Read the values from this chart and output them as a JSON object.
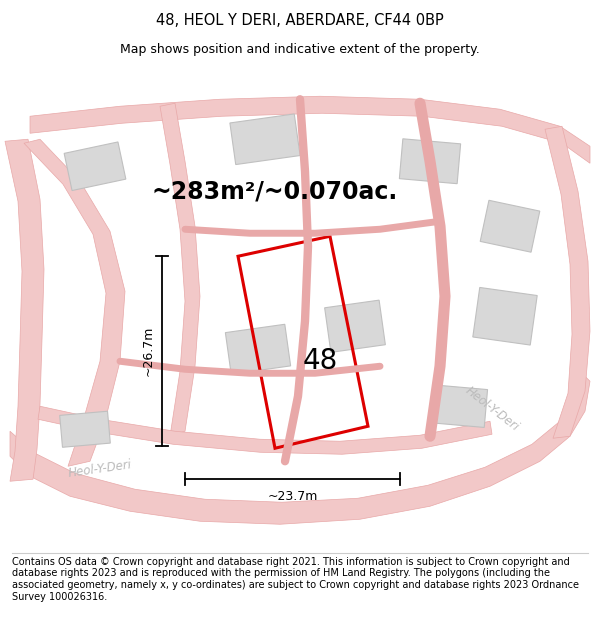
{
  "title": "48, HEOL Y DERI, ABERDARE, CF44 0BP",
  "subtitle": "Map shows position and indicative extent of the property.",
  "area_text": "~283m²/~0.070ac.",
  "number_label": "48",
  "dim_width": "~23.7m",
  "dim_height": "~26.7m",
  "footer": "Contains OS data © Crown copyright and database right 2021. This information is subject to Crown copyright and database rights 2023 and is reproduced with the permission of HM Land Registry. The polygons (including the associated geometry, namely x, y co-ordinates) are subject to Crown copyright and database rights 2023 Ordnance Survey 100026316.",
  "bg_color": "#f7f7f7",
  "road_fill_color": "#f2c8c8",
  "road_line_color": "#e8a8a8",
  "building_color": "#d8d8d8",
  "building_edge_color": "#c0c0c0",
  "plot_border_color": "#dd0000",
  "road_label_color": "#bbbbbb",
  "title_fontsize": 10.5,
  "subtitle_fontsize": 9,
  "footer_fontsize": 7
}
